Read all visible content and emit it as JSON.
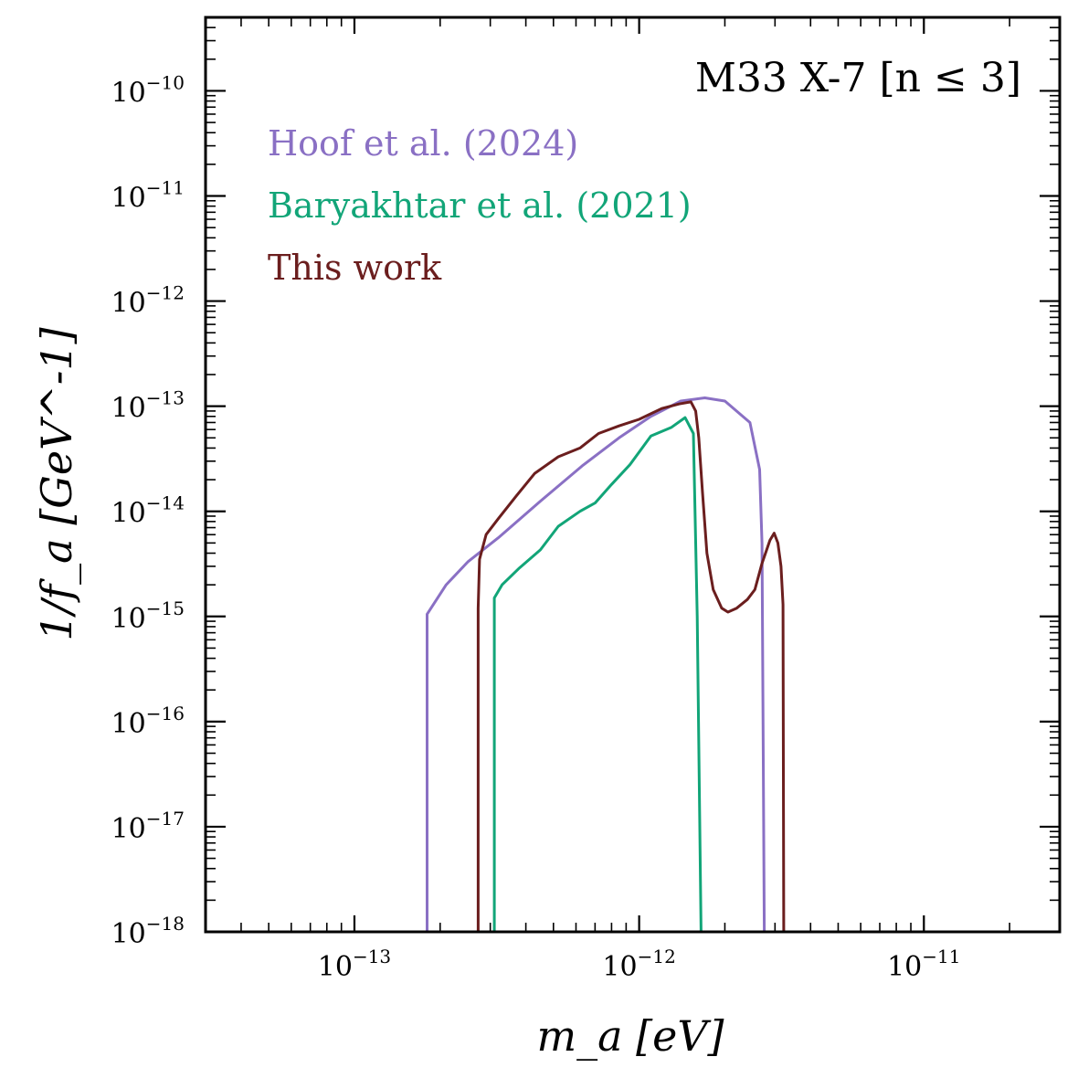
{
  "chart_data": {
    "type": "line",
    "title": "M33 X-7 [n ≤ 3]",
    "xlabel": "m_a [eV]",
    "ylabel": "1/f_a [GeV^-1]",
    "xscale": "log",
    "yscale": "log",
    "xlim": [
      3e-14,
      3e-11
    ],
    "ylim": [
      1e-18,
      5e-10
    ],
    "x_tick_labels": [
      "10^-13",
      "10^-12",
      "10^-11"
    ],
    "y_tick_labels": [
      "10^-18",
      "10^-17",
      "10^-16",
      "10^-15",
      "10^-14",
      "10^-13",
      "10^-12",
      "10^-11",
      "10^-10"
    ],
    "legend_location": "top-left",
    "series": [
      {
        "name": "Hoof et al. (2024)",
        "color": "#8a70c4",
        "points": [
          [
            1.8e-13,
            1e-18
          ],
          [
            1.8e-13,
            1.05e-15
          ],
          [
            2.1e-13,
            2e-15
          ],
          [
            2.5e-13,
            3.3e-15
          ],
          [
            3.2e-13,
            5.6e-15
          ],
          [
            4.5e-13,
            1.25e-14
          ],
          [
            6.3e-13,
            2.7e-14
          ],
          [
            8.5e-13,
            5e-14
          ],
          [
            1.1e-12,
            8e-14
          ],
          [
            1.4e-12,
            1.12e-13
          ],
          [
            1.7e-12,
            1.2e-13
          ],
          [
            2e-12,
            1.12e-13
          ],
          [
            2.45e-12,
            7e-14
          ],
          [
            2.65e-12,
            2.5e-14
          ],
          [
            2.7e-12,
            5e-15
          ],
          [
            2.75e-12,
            1e-18
          ]
        ]
      },
      {
        "name": "Baryakhtar et al. (2021)",
        "color": "#12a578",
        "points": [
          [
            3.1e-13,
            1e-18
          ],
          [
            3.1e-13,
            1.5e-15
          ],
          [
            3.3e-13,
            2e-15
          ],
          [
            3.8e-13,
            2.9e-15
          ],
          [
            4.5e-13,
            4.3e-15
          ],
          [
            5.2e-13,
            7.2e-15
          ],
          [
            6.2e-13,
            1e-14
          ],
          [
            7e-13,
            1.2e-14
          ],
          [
            8e-13,
            1.8e-14
          ],
          [
            9.3e-13,
            2.8e-14
          ],
          [
            1.1e-12,
            5.2e-14
          ],
          [
            1.3e-12,
            6.3e-14
          ],
          [
            1.45e-12,
            7.8e-14
          ],
          [
            1.55e-12,
            5.5e-14
          ],
          [
            1.6e-12,
            1e-15
          ],
          [
            1.65e-12,
            1e-18
          ]
        ]
      },
      {
        "name": "This work",
        "color": "#6b1e1e",
        "points": [
          [
            2.72e-13,
            1e-18
          ],
          [
            2.72e-13,
            1.2e-15
          ],
          [
            2.75e-13,
            3.5e-15
          ],
          [
            2.9e-13,
            6e-15
          ],
          [
            3.2e-13,
            8.5e-15
          ],
          [
            3.7e-13,
            1.4e-14
          ],
          [
            4.3e-13,
            2.3e-14
          ],
          [
            5.2e-13,
            3.3e-14
          ],
          [
            6.2e-13,
            4e-14
          ],
          [
            7.2e-13,
            5.5e-14
          ],
          [
            8.5e-13,
            6.5e-14
          ],
          [
            1e-12,
            7.5e-14
          ],
          [
            1.2e-12,
            9.5e-14
          ],
          [
            1.38e-12,
            1.05e-13
          ],
          [
            1.52e-12,
            1.1e-13
          ],
          [
            1.58e-12,
            9e-14
          ],
          [
            1.62e-12,
            5e-14
          ],
          [
            1.67e-12,
            1.5e-14
          ],
          [
            1.73e-12,
            4e-15
          ],
          [
            1.82e-12,
            1.8e-15
          ],
          [
            1.95e-12,
            1.2e-15
          ],
          [
            2.05e-12,
            1.1e-15
          ],
          [
            2.2e-12,
            1.2e-15
          ],
          [
            2.4e-12,
            1.45e-15
          ],
          [
            2.55e-12,
            1.8e-15
          ],
          [
            2.7e-12,
            3.2e-15
          ],
          [
            2.88e-12,
            5.3e-15
          ],
          [
            2.98e-12,
            6.2e-15
          ],
          [
            3.07e-12,
            5e-15
          ],
          [
            3.15e-12,
            3e-15
          ],
          [
            3.2e-12,
            1.3e-15
          ],
          [
            3.22e-12,
            1e-18
          ]
        ]
      }
    ]
  }
}
